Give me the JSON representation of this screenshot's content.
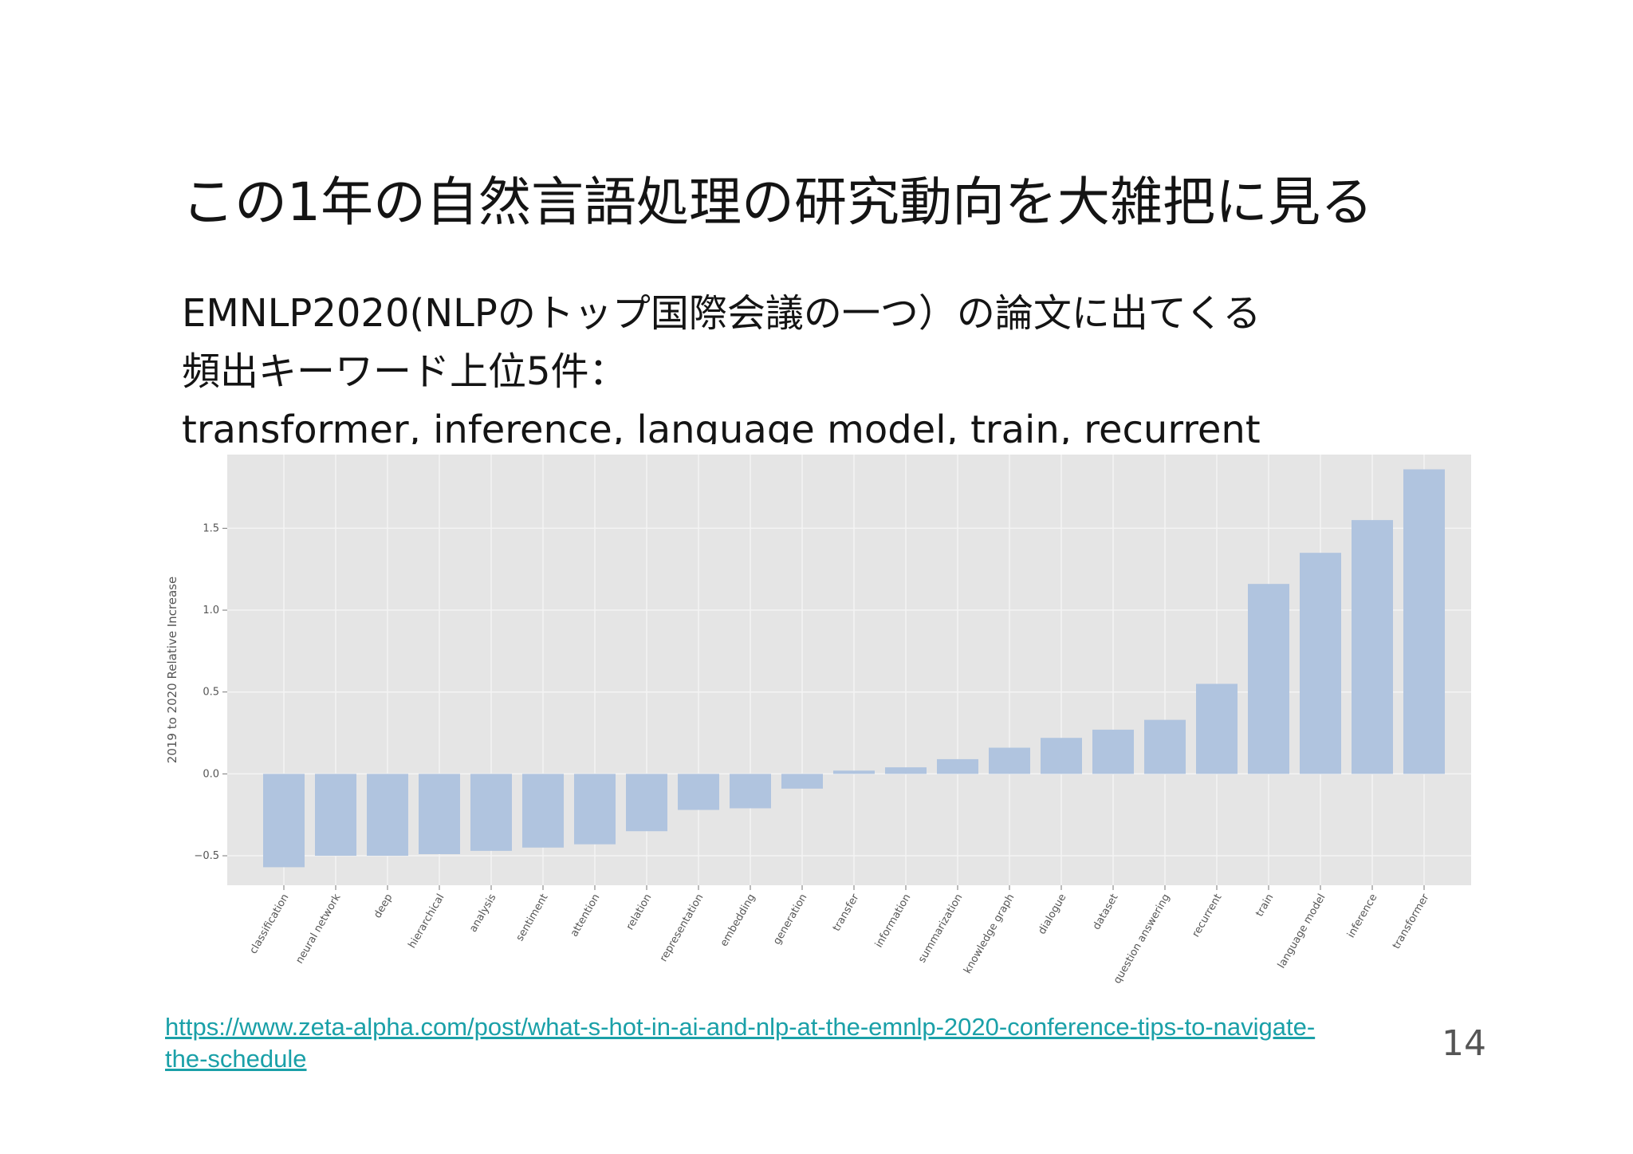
{
  "slide": {
    "title": "この1年の自然言語処理の研究動向を大雑把に見る",
    "body_lines": [
      "EMNLP2020(NLPのトップ国際会議の一つ）の論文に出てくる",
      "頻出キーワード上位5件：",
      "transformer, inference, language model, train, recurrent"
    ],
    "source_url": "https://www.zeta-alpha.com/post/what-s-hot-in-ai-and-nlp-at-the-emnlp-2020-conference-tips-to-navigate-the-schedule",
    "page_number": "14"
  },
  "chart_data": {
    "type": "bar",
    "ylabel": "2019 to 2020 Relative Increase",
    "xlabel": "",
    "ylim": [
      -0.68,
      1.95
    ],
    "yticks": [
      -0.5,
      0.0,
      0.5,
      1.0,
      1.5
    ],
    "ytick_labels": [
      "−0.5",
      "0.0",
      "0.5",
      "1.0",
      "1.5"
    ],
    "grid": true,
    "categories": [
      "classification",
      "neural network",
      "deep",
      "hierarchical",
      "analysis",
      "sentiment",
      "attention",
      "relation",
      "representation",
      "embedding",
      "generation",
      "transfer",
      "information",
      "summarization",
      "knowledge graph",
      "dialogue",
      "dataset",
      "question answering",
      "recurrent",
      "train",
      "language model",
      "inference",
      "transformer"
    ],
    "values": [
      -0.57,
      -0.5,
      -0.5,
      -0.49,
      -0.47,
      -0.45,
      -0.43,
      -0.35,
      -0.22,
      -0.21,
      -0.09,
      0.02,
      0.04,
      0.09,
      0.16,
      0.22,
      0.27,
      0.33,
      0.55,
      1.16,
      1.35,
      1.55,
      1.86
    ],
    "colors": {
      "bar": "#b0c4df",
      "plot_bg": "#e5e5e5",
      "grid": "#f4f4f4"
    }
  }
}
